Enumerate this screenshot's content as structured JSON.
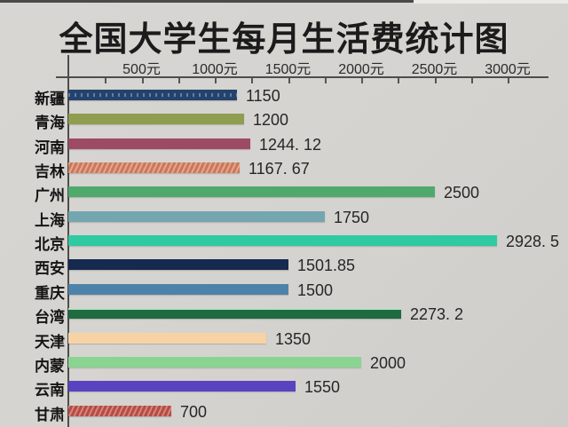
{
  "page": {
    "background": "#d5d3cf",
    "axis_color": "#4d4d4d",
    "text_color": "#1b1b1b"
  },
  "title": "全国大学生每月生活费统计图",
  "chart_data": {
    "type": "bar",
    "orientation": "horizontal",
    "title": "全国大学生每月生活费统计图",
    "unit": "元",
    "xlim": [
      0,
      3100
    ],
    "grid": false,
    "legend": false,
    "minor_tick_step": 250,
    "x_ticks": [
      {
        "value": 500,
        "label": "500元"
      },
      {
        "value": 1000,
        "label": "1000元"
      },
      {
        "value": 1500,
        "label": "1500元"
      },
      {
        "value": 2000,
        "label": "2000元"
      },
      {
        "value": 2500,
        "label": "2500元"
      },
      {
        "value": 3000,
        "label": "3000元"
      }
    ],
    "categories": [
      "新疆",
      "青海",
      "河南",
      "吉林",
      "广州",
      "上海",
      "北京",
      "西安",
      "重庆",
      "台湾",
      "天津",
      "内蒙",
      "云南",
      "甘肃"
    ],
    "values": [
      1150,
      1200,
      1244.12,
      1167.67,
      2500,
      1750,
      2928.5,
      1501.85,
      1500,
      2273.2,
      1350,
      2000,
      1550,
      700
    ],
    "value_labels": [
      "1150",
      "1200",
      "1244. 12",
      "1167. 67",
      "2500",
      "1750",
      "2928. 5",
      "1501.85",
      "1500",
      "2273. 2",
      "1350",
      "2000",
      "1550",
      "700"
    ],
    "bar_colors": [
      "#24426b",
      "#8e9d4f",
      "#9d4b64",
      "#d87f60",
      "#4fa96c",
      "#74a6b0",
      "#2fc9a2",
      "#16294f",
      "#4d83aa",
      "#1e6b40",
      "#f6d2a4",
      "#8ad492",
      "#5a43c0",
      "#c05148"
    ],
    "bar_textures": [
      "dashes",
      "solid",
      "solid",
      "hatch",
      "solid",
      "solid",
      "solid",
      "solid",
      "solid",
      "edge",
      "solid",
      "solid",
      "solid",
      "hatch"
    ]
  }
}
